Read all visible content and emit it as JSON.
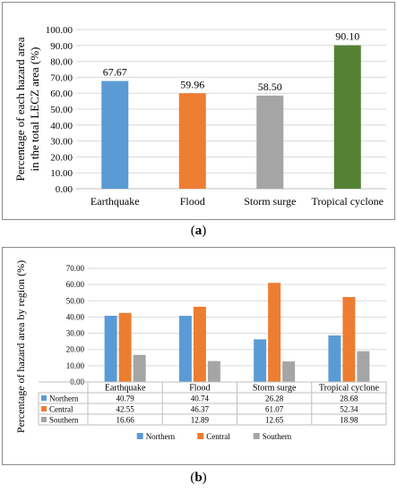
{
  "panel_a": {
    "caption_open": "(",
    "caption_letter": "a",
    "caption_close": ")"
  },
  "panel_b": {
    "caption_open": "(",
    "caption_letter": "b",
    "caption_close": ")"
  },
  "chart_data": [
    {
      "type": "bar",
      "title": "",
      "ylabel": "Percentage of each hazard area in the total LECZ area (%)",
      "ylabel_lines": [
        "Percentage of each hazard area",
        "in the total LECZ area  (%)"
      ],
      "xlabel": "",
      "ylim": [
        0,
        100
      ],
      "yticks": [
        "0.00",
        "10.00",
        "20.00",
        "30.00",
        "40.00",
        "50.00",
        "60.00",
        "70.00",
        "80.00",
        "90.00",
        "100.00"
      ],
      "categories": [
        "Earthquake",
        "Flood",
        "Storm surge",
        "Tropical cyclone"
      ],
      "values": [
        67.67,
        59.96,
        58.5,
        90.1
      ],
      "value_labels": [
        "67.67",
        "59.96",
        "58.50",
        "90.10"
      ],
      "colors": [
        "#5b9bd5",
        "#ed7d31",
        "#a5a5a5",
        "#548235"
      ],
      "grid": true,
      "legend": "none"
    },
    {
      "type": "bar",
      "title": "",
      "ylabel": "Percentage of hazard area by region (%)",
      "xlabel": "",
      "ylim": [
        0,
        70
      ],
      "yticks": [
        "0.00",
        "10.00",
        "20.00",
        "30.00",
        "40.00",
        "50.00",
        "60.00",
        "70.00"
      ],
      "categories": [
        "Earthquake",
        "Flood",
        "Storm surge",
        "Tropical cyclone"
      ],
      "series": [
        {
          "name": "Northern",
          "table_name": "Northern",
          "color": "#5b9bd5",
          "values": [
            40.79,
            40.74,
            26.28,
            28.68
          ],
          "labels": [
            "40.79",
            "40.74",
            "26.28",
            "28.68"
          ]
        },
        {
          "name": "Central",
          "table_name": "Central",
          "color": "#ed7d31",
          "values": [
            42.55,
            46.37,
            61.07,
            52.34
          ],
          "labels": [
            "42.55",
            "46.37",
            "61.07",
            "52.34"
          ]
        },
        {
          "name": "Southern",
          "table_name": "Southern",
          "color": "#a5a5a5",
          "values": [
            16.66,
            12.89,
            12.65,
            18.98
          ],
          "labels": [
            "16.66",
            "12.89",
            "12.65",
            "18.98"
          ]
        }
      ],
      "grid": true,
      "data_table": true,
      "legend": "bottom"
    }
  ]
}
